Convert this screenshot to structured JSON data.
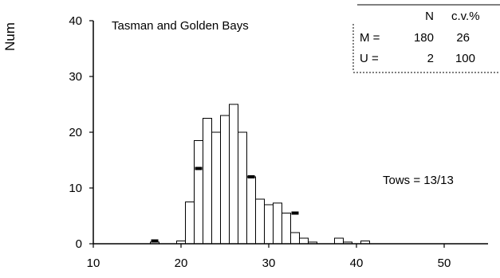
{
  "chart_data": {
    "type": "bar",
    "title": "Tasman and Golden Bays",
    "ylabel": "Num",
    "xlabel": "",
    "xlim": [
      10,
      55
    ],
    "ylim": [
      0,
      40
    ],
    "x_ticks": [
      10,
      20,
      30,
      40,
      50
    ],
    "y_ticks": [
      0,
      10,
      20,
      30,
      40
    ],
    "bin_width": 1,
    "series": [
      {
        "name": "M",
        "style": "outline",
        "x": [
          17,
          20,
          21,
          22,
          23,
          24,
          25,
          26,
          27,
          28,
          29,
          30,
          31,
          32,
          33,
          34,
          35,
          38,
          39,
          41
        ],
        "values": [
          0.3,
          0.5,
          7.5,
          18.5,
          22.5,
          20,
          23,
          25,
          20,
          12,
          8,
          7,
          7.3,
          5.5,
          2,
          1,
          0.3,
          1,
          0.3,
          0.5
        ]
      },
      {
        "name": "U",
        "style": "solid",
        "x": [
          17,
          22,
          28,
          33
        ],
        "values": [
          0.5,
          13.5,
          12,
          5.5
        ]
      }
    ],
    "annotation": "Tows = 13/13",
    "summary_table": {
      "header": [
        "",
        "N",
        "c.v.%"
      ],
      "rows": [
        {
          "label": "M =",
          "n": "180",
          "cv": "26"
        },
        {
          "label": "U =",
          "n": "2",
          "cv": "100"
        }
      ]
    },
    "grid": false,
    "legend": "table top-right"
  }
}
